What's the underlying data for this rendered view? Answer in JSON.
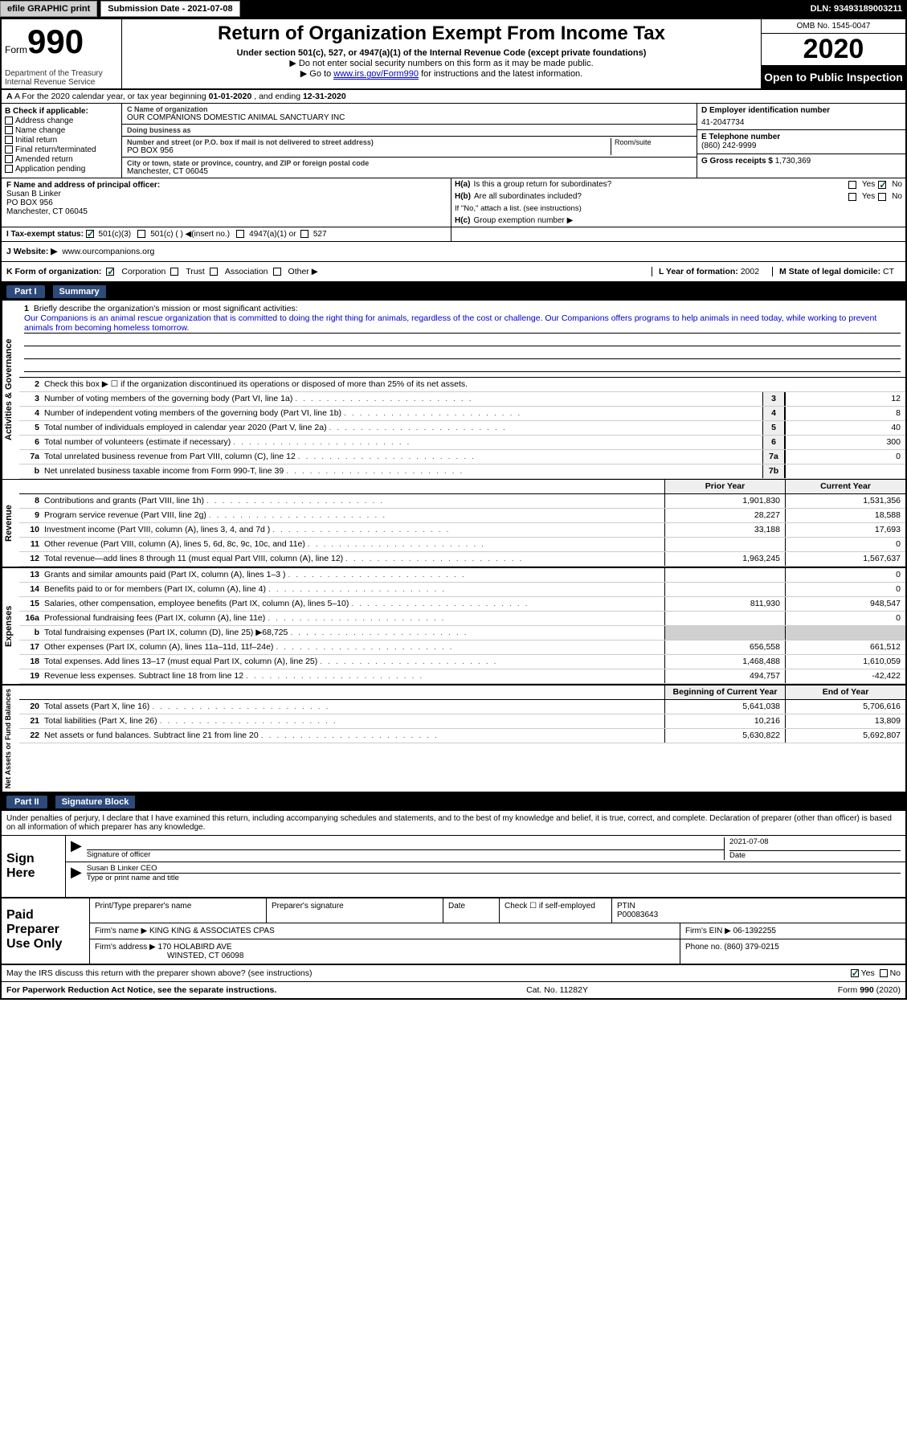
{
  "meta": {
    "graphic_btn": "efile GRAPHIC print",
    "submission_label": "Submission Date - 2021-07-08",
    "dln": "DLN: 93493189003211"
  },
  "header": {
    "form_word": "Form",
    "form_num": "990",
    "dept": "Department of the Treasury\nInternal Revenue Service",
    "title": "Return of Organization Exempt From Income Tax",
    "subtitle": "Under section 501(c), 527, or 4947(a)(1) of the Internal Revenue Code (except private foundations)",
    "note1": "▶ Do not enter social security numbers on this form as it may be made public.",
    "note2_pre": "▶ Go to ",
    "note2_link": "www.irs.gov/Form990",
    "note2_post": " for instructions and the latest information.",
    "omb": "OMB No. 1545-0047",
    "year": "2020",
    "public": "Open to Public Inspection"
  },
  "line_a": {
    "text_pre": "A For the 2020 calendar year, or tax year beginning ",
    "begin": "01-01-2020",
    "mid": " , and ending ",
    "end": "12-31-2020"
  },
  "boxB": {
    "label": "B Check if applicable:",
    "items": [
      "Address change",
      "Name change",
      "Initial return",
      "Final return/terminated",
      "Amended return",
      "Application pending"
    ]
  },
  "boxC": {
    "name_label": "C Name of organization",
    "name": "OUR COMPANIONS DOMESTIC ANIMAL SANCTUARY INC",
    "dba_label": "Doing business as",
    "dba": "",
    "addr_label": "Number and street (or P.O. box if mail is not delivered to street address)",
    "room_label": "Room/suite",
    "addr": "PO BOX 956",
    "city_label": "City or town, state or province, country, and ZIP or foreign postal code",
    "city": "Manchester, CT  06045"
  },
  "boxD": {
    "ein_label": "D Employer identification number",
    "ein": "41-2047734",
    "phone_label": "E Telephone number",
    "phone": "(860) 242-9999",
    "gross_label": "G Gross receipts $",
    "gross": "1,730,369"
  },
  "boxF": {
    "label": "F  Name and address of principal officer:",
    "name": "Susan B Linker",
    "addr1": "PO BOX 956",
    "addr2": "Manchester, CT  06045"
  },
  "boxH": {
    "a_label": "H(a)",
    "a_text": "Is this a group return for subordinates?",
    "a_yes": "Yes",
    "a_no": "No",
    "b_label": "H(b)",
    "b_text": "Are all subordinates included?",
    "b_note": "If \"No,\" attach a list. (see instructions)",
    "c_label": "H(c)",
    "c_text": "Group exemption number ▶"
  },
  "boxI": {
    "label": "I  Tax-exempt status:",
    "o1": "501(c)(3)",
    "o2": "501(c) (  ) ◀(insert no.)",
    "o3": "4947(a)(1) or",
    "o4": "527"
  },
  "boxJ": {
    "label": "J  Website: ▶",
    "value": "www.ourcompanions.org"
  },
  "boxK": {
    "label": "K Form of organization:",
    "o1": "Corporation",
    "o2": "Trust",
    "o3": "Association",
    "o4": "Other ▶",
    "L_label": "L Year of formation:",
    "L_val": "2002",
    "M_label": "M State of legal domicile:",
    "M_val": "CT"
  },
  "part1": {
    "badge": "Part I",
    "title": "Summary",
    "side_labels": [
      "Activities & Governance",
      "Revenue",
      "Expenses",
      "Net Assets or Fund Balances"
    ],
    "line1_label": "1",
    "line1_text": "Briefly describe the organization's mission or most significant activities:",
    "mission": "Our Companions is an animal rescue organization that is committed to doing the right thing for animals, regardless of the cost or challenge. Our Companions offers programs to help animals in need today, while working to prevent animals from becoming homeless tomorrow.",
    "line2": {
      "n": "2",
      "t": "Check this box ▶ ☐  if the organization discontinued its operations or disposed of more than 25% of its net assets."
    },
    "rows_ag": [
      {
        "n": "3",
        "t": "Number of voting members of the governing body (Part VI, line 1a)",
        "box": "3",
        "v": "12"
      },
      {
        "n": "4",
        "t": "Number of independent voting members of the governing body (Part VI, line 1b)",
        "box": "4",
        "v": "8"
      },
      {
        "n": "5",
        "t": "Total number of individuals employed in calendar year 2020 (Part V, line 2a)",
        "box": "5",
        "v": "40"
      },
      {
        "n": "6",
        "t": "Total number of volunteers (estimate if necessary)",
        "box": "6",
        "v": "300"
      },
      {
        "n": "7a",
        "t": "Total unrelated business revenue from Part VIII, column (C), line 12",
        "box": "7a",
        "v": "0"
      },
      {
        "n": "b",
        "t": "Net unrelated business taxable income from Form 990-T, line 39",
        "box": "7b",
        "v": ""
      }
    ],
    "col_headers": {
      "py": "Prior Year",
      "cy": "Current Year"
    },
    "rows_rev": [
      {
        "n": "8",
        "t": "Contributions and grants (Part VIII, line 1h)",
        "py": "1,901,830",
        "cy": "1,531,356"
      },
      {
        "n": "9",
        "t": "Program service revenue (Part VIII, line 2g)",
        "py": "28,227",
        "cy": "18,588"
      },
      {
        "n": "10",
        "t": "Investment income (Part VIII, column (A), lines 3, 4, and 7d )",
        "py": "33,188",
        "cy": "17,693"
      },
      {
        "n": "11",
        "t": "Other revenue (Part VIII, column (A), lines 5, 6d, 8c, 9c, 10c, and 11e)",
        "py": "",
        "cy": "0"
      },
      {
        "n": "12",
        "t": "Total revenue—add lines 8 through 11 (must equal Part VIII, column (A), line 12)",
        "py": "1,963,245",
        "cy": "1,567,637"
      }
    ],
    "rows_exp": [
      {
        "n": "13",
        "t": "Grants and similar amounts paid (Part IX, column (A), lines 1–3 )",
        "py": "",
        "cy": "0"
      },
      {
        "n": "14",
        "t": "Benefits paid to or for members (Part IX, column (A), line 4)",
        "py": "",
        "cy": "0"
      },
      {
        "n": "15",
        "t": "Salaries, other compensation, employee benefits (Part IX, column (A), lines 5–10)",
        "py": "811,930",
        "cy": "948,547"
      },
      {
        "n": "16a",
        "t": "Professional fundraising fees (Part IX, column (A), line 11e)",
        "py": "",
        "cy": "0"
      },
      {
        "n": "b",
        "t": "Total fundraising expenses (Part IX, column (D), line 25) ▶68,725",
        "py": "GREY",
        "cy": "GREY"
      },
      {
        "n": "17",
        "t": "Other expenses (Part IX, column (A), lines 11a–11d, 11f–24e)",
        "py": "656,558",
        "cy": "661,512"
      },
      {
        "n": "18",
        "t": "Total expenses. Add lines 13–17 (must equal Part IX, column (A), line 25)",
        "py": "1,468,488",
        "cy": "1,610,059"
      },
      {
        "n": "19",
        "t": "Revenue less expenses. Subtract line 18 from line 12",
        "py": "494,757",
        "cy": "-42,422"
      }
    ],
    "col_headers2": {
      "py": "Beginning of Current Year",
      "cy": "End of Year"
    },
    "rows_net": [
      {
        "n": "20",
        "t": "Total assets (Part X, line 16)",
        "py": "5,641,038",
        "cy": "5,706,616"
      },
      {
        "n": "21",
        "t": "Total liabilities (Part X, line 26)",
        "py": "10,216",
        "cy": "13,809"
      },
      {
        "n": "22",
        "t": "Net assets or fund balances. Subtract line 21 from line 20",
        "py": "5,630,822",
        "cy": "5,692,807"
      }
    ]
  },
  "part2": {
    "badge": "Part II",
    "title": "Signature Block",
    "intro": "Under penalties of perjury, I declare that I have examined this return, including accompanying schedules and statements, and to the best of my knowledge and belief, it is true, correct, and complete. Declaration of preparer (other than officer) is based on all information of which preparer has any knowledge.",
    "sign_left": "Sign Here",
    "sig_label": "Signature of officer",
    "sig_date_label": "Date",
    "sig_date": "2021-07-08",
    "name_title": "Susan B Linker CEO",
    "name_title_label": "Type or print name and title",
    "prep_left": "Paid Preparer Use Only",
    "prep_headers": {
      "name": "Print/Type preparer's name",
      "sig": "Preparer's signature",
      "date": "Date",
      "check": "Check ☐ if self-employed",
      "ptin_l": "PTIN",
      "ptin": "P00083643"
    },
    "firm_name_l": "Firm's name    ▶",
    "firm_name": "KING KING & ASSOCIATES CPAS",
    "firm_ein_l": "Firm's EIN ▶",
    "firm_ein": "06-1392255",
    "firm_addr_l": "Firm's address ▶",
    "firm_addr1": "170 HOLABIRD AVE",
    "firm_addr2": "WINSTED, CT  06098",
    "firm_phone_l": "Phone no.",
    "firm_phone": "(860) 379-0215",
    "discuss": "May the IRS discuss this return with the preparer shown above? (see instructions)",
    "discuss_yes": "Yes",
    "discuss_no": "No"
  },
  "footer": {
    "left": "For Paperwork Reduction Act Notice, see the separate instructions.",
    "mid": "Cat. No. 11282Y",
    "right": "Form 990 (2020)"
  },
  "colors": {
    "link": "#0000cc",
    "part_bg": "#2c4a7a",
    "grey": "#d0d0d0"
  }
}
